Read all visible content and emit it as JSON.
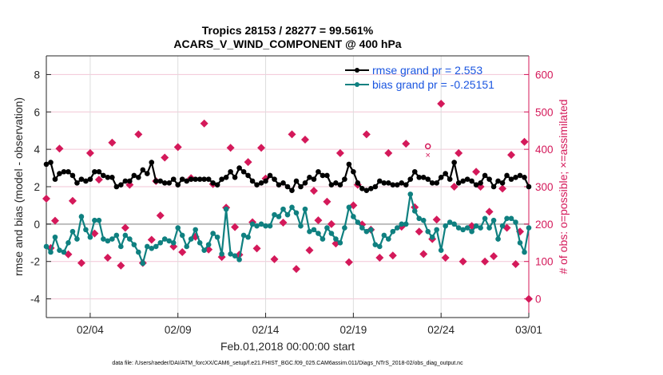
{
  "chart_data": {
    "type": "line",
    "title": [
      "Tropics 28153 / 28277 = 99.561%",
      "ACARS_V_WIND_COMPONENT @ 400 hPa"
    ],
    "xlabel": "Feb.01,2018 00:00:00 start",
    "ylabel": "rmse and bias (model - observation)",
    "ylabel_right": "# of obs: o=possible; ×=assimilated",
    "footer": "data file: /Users/raeder/DAI/ATM_forcXX/CAM6_setup/f.e21.FHIST_BGC.f09_025.CAM6assim.011/Diags_NTrS_2018-02/obs_diag_output.nc",
    "x_unit": "days since Feb.01,2018 00:00:00",
    "xlim": [
      0.5,
      28
    ],
    "x_ticks": [
      {
        "value": 3,
        "label": "02/04"
      },
      {
        "value": 8,
        "label": "02/09"
      },
      {
        "value": 13,
        "label": "02/14"
      },
      {
        "value": 18,
        "label": "02/19"
      },
      {
        "value": 23,
        "label": "02/24"
      },
      {
        "value": 28,
        "label": "03/01"
      }
    ],
    "ylim": [
      -5,
      9
    ],
    "y_ticks": [
      -4,
      -2,
      0,
      2,
      4,
      6,
      8
    ],
    "ylim_right": [
      -50,
      650
    ],
    "y_ticks_right": [
      0,
      100,
      200,
      300,
      400,
      500,
      600
    ],
    "legend": {
      "position": "top-right",
      "entries": [
        {
          "label": "rmse grand pr = 2.553",
          "series": "rmse"
        },
        {
          "label": "bias grand pr = -0.25151",
          "series": "bias"
        }
      ]
    },
    "x_start": 0.5,
    "x_step": 0.25,
    "series": [
      {
        "name": "rmse",
        "axis": "left",
        "color": "#000000",
        "values": [
          3.2,
          3.3,
          2.4,
          2.7,
          2.8,
          2.8,
          2.6,
          2.2,
          2.4,
          2.3,
          2.4,
          2.8,
          2.8,
          2.6,
          2.5,
          2.5,
          2.0,
          2.1,
          2.3,
          2.3,
          2.6,
          2.5,
          2.9,
          2.7,
          3.3,
          2.3,
          2.3,
          2.2,
          2.2,
          2.4,
          2.1,
          2.4,
          2.3,
          2.4,
          2.4,
          2.4,
          2.4,
          2.4,
          2.2,
          2.1,
          2.4,
          2.5,
          2.8,
          2.5,
          3.0,
          2.8,
          2.6,
          2.3,
          2.1,
          2.2,
          2.3,
          2.6,
          2.4,
          2.1,
          2.2,
          2.0,
          1.8,
          2.3,
          2.0,
          2.2,
          2.5,
          2.4,
          2.8,
          2.6,
          2.6,
          2.1,
          2.2,
          2.1,
          2.4,
          3.2,
          2.8,
          2.2,
          1.9,
          1.8,
          1.9,
          2.0,
          2.3,
          2.2,
          2.2,
          2.1,
          2.1,
          2.2,
          2.1,
          2.4,
          2.8,
          2.5,
          2.5,
          2.4,
          2.2,
          2.2,
          2.5,
          2.7,
          2.4,
          3.3,
          2.2,
          2.3,
          2.4,
          2.3,
          2.1,
          2.2,
          2.6,
          2.4,
          2.0,
          2.3,
          2.2,
          2.6,
          2.4,
          2.5,
          2.6,
          2.5,
          2.0
        ]
      },
      {
        "name": "bias",
        "axis": "left",
        "color": "#0f8080",
        "values": [
          -1.2,
          -1.5,
          -0.7,
          -1.4,
          -1.5,
          -1.0,
          -0.4,
          -0.8,
          0.4,
          -0.3,
          -0.7,
          0.2,
          0.2,
          -0.8,
          -0.9,
          -0.8,
          -0.6,
          -1.2,
          -0.6,
          -0.8,
          -1.1,
          -1.5,
          -2.1,
          -1.2,
          -1.3,
          -1.2,
          -1.0,
          -0.8,
          -0.9,
          -1.0,
          -0.2,
          -0.6,
          -1.2,
          -0.8,
          -0.3,
          -1.0,
          -1.4,
          -1.1,
          -0.5,
          -0.7,
          -1.6,
          0.8,
          -1.6,
          -1.7,
          -1.9,
          -0.6,
          -0.7,
          0.0,
          -0.1,
          0.0,
          -0.1,
          -0.1,
          0.5,
          0.4,
          0.8,
          0.5,
          0.9,
          0.6,
          -0.1,
          0.8,
          -0.4,
          -0.3,
          -0.5,
          -0.8,
          -0.2,
          -0.5,
          -0.8,
          -1.0,
          -0.2,
          0.9,
          0.4,
          0.1,
          -0.2,
          -0.4,
          -0.3,
          -1.1,
          -1.2,
          -0.6,
          -0.8,
          -0.4,
          -0.2,
          0.0,
          0.0,
          1.6,
          0.7,
          0.3,
          0.2,
          -0.4,
          -0.7,
          -0.3,
          -1.4,
          -0.1,
          0.1,
          0.0,
          -0.2,
          -0.3,
          -0.2,
          -0.4,
          -0.1,
          -0.2,
          0.3,
          -0.2,
          0.2,
          -0.8,
          -0.1,
          0.3,
          0.3,
          0.1,
          -1.0,
          -1.5,
          -0.2
        ]
      },
      {
        "name": "obs_possible",
        "axis": "right",
        "color": "#d4195a",
        "marker": "o",
        "values": [
          {
            "x": 0.5,
            "y": 268
          },
          {
            "x": 0.75,
            "y": 136
          },
          {
            "x": 1.0,
            "y": 209
          },
          {
            "x": 1.25,
            "y": 402
          },
          {
            "x": 1.75,
            "y": 119
          },
          {
            "x": 2.0,
            "y": 262
          },
          {
            "x": 2.5,
            "y": 96
          },
          {
            "x": 3.0,
            "y": 390
          },
          {
            "x": 3.25,
            "y": 175
          },
          {
            "x": 3.5,
            "y": 319
          },
          {
            "x": 4.0,
            "y": 110
          },
          {
            "x": 4.25,
            "y": 418
          },
          {
            "x": 4.75,
            "y": 89
          },
          {
            "x": 5.0,
            "y": 190
          },
          {
            "x": 5.25,
            "y": 305
          },
          {
            "x": 5.75,
            "y": 440
          },
          {
            "x": 6.0,
            "y": 96
          },
          {
            "x": 6.5,
            "y": 158
          },
          {
            "x": 6.75,
            "y": 315
          },
          {
            "x": 7.0,
            "y": 223
          },
          {
            "x": 7.25,
            "y": 378
          },
          {
            "x": 7.75,
            "y": 140
          },
          {
            "x": 8.0,
            "y": 406
          },
          {
            "x": 8.25,
            "y": 125
          },
          {
            "x": 8.75,
            "y": 323
          },
          {
            "x": 9.0,
            "y": 166
          },
          {
            "x": 9.5,
            "y": 469
          },
          {
            "x": 9.75,
            "y": 132
          },
          {
            "x": 10.0,
            "y": 307
          },
          {
            "x": 10.5,
            "y": 112
          },
          {
            "x": 10.75,
            "y": 244
          },
          {
            "x": 11.0,
            "y": 404
          },
          {
            "x": 11.25,
            "y": 192
          },
          {
            "x": 11.5,
            "y": 118
          },
          {
            "x": 12.0,
            "y": 366
          },
          {
            "x": 12.25,
            "y": 205
          },
          {
            "x": 12.5,
            "y": 135
          },
          {
            "x": 12.75,
            "y": 404
          },
          {
            "x": 13.0,
            "y": 322
          },
          {
            "x": 13.5,
            "y": 106
          },
          {
            "x": 14.0,
            "y": 204
          },
          {
            "x": 14.5,
            "y": 440
          },
          {
            "x": 14.75,
            "y": 80
          },
          {
            "x": 15.25,
            "y": 426
          },
          {
            "x": 15.5,
            "y": 130
          },
          {
            "x": 15.75,
            "y": 289
          },
          {
            "x": 16.0,
            "y": 210
          },
          {
            "x": 16.5,
            "y": 260
          },
          {
            "x": 16.75,
            "y": 200
          },
          {
            "x": 17.0,
            "y": 148
          },
          {
            "x": 17.25,
            "y": 390
          },
          {
            "x": 17.75,
            "y": 98
          },
          {
            "x": 18.0,
            "y": 250
          },
          {
            "x": 18.25,
            "y": 305
          },
          {
            "x": 18.5,
            "y": 199
          },
          {
            "x": 18.75,
            "y": 440
          },
          {
            "x": 19.0,
            "y": 185
          },
          {
            "x": 19.5,
            "y": 110
          },
          {
            "x": 20.0,
            "y": 390
          },
          {
            "x": 20.25,
            "y": 116
          },
          {
            "x": 20.75,
            "y": 193
          },
          {
            "x": 21.0,
            "y": 415
          },
          {
            "x": 21.5,
            "y": 245
          },
          {
            "x": 21.75,
            "y": 180
          },
          {
            "x": 22.0,
            "y": 120
          },
          {
            "x": 22.5,
            "y": 160
          },
          {
            "x": 22.75,
            "y": 212
          },
          {
            "x": 23.0,
            "y": 522
          },
          {
            "x": 23.25,
            "y": 110
          },
          {
            "x": 23.75,
            "y": 300
          },
          {
            "x": 24.0,
            "y": 390
          },
          {
            "x": 24.25,
            "y": 100
          },
          {
            "x": 24.75,
            "y": 195
          },
          {
            "x": 25.0,
            "y": 340
          },
          {
            "x": 25.25,
            "y": 300
          },
          {
            "x": 25.5,
            "y": 100
          },
          {
            "x": 25.75,
            "y": 233
          },
          {
            "x": 26.0,
            "y": 114
          },
          {
            "x": 26.5,
            "y": 295
          },
          {
            "x": 26.75,
            "y": 190
          },
          {
            "x": 27.0,
            "y": 385
          },
          {
            "x": 27.25,
            "y": 93
          },
          {
            "x": 27.5,
            "y": 180
          },
          {
            "x": 27.75,
            "y": 420
          },
          {
            "x": 28.0,
            "y": 0
          }
        ]
      },
      {
        "name": "obs_assimilated",
        "axis": "right",
        "color": "#d4195a",
        "marker": "x",
        "values": "same as obs_possible except one point at x=22.25: possible=408, assimilated=385"
      }
    ]
  }
}
